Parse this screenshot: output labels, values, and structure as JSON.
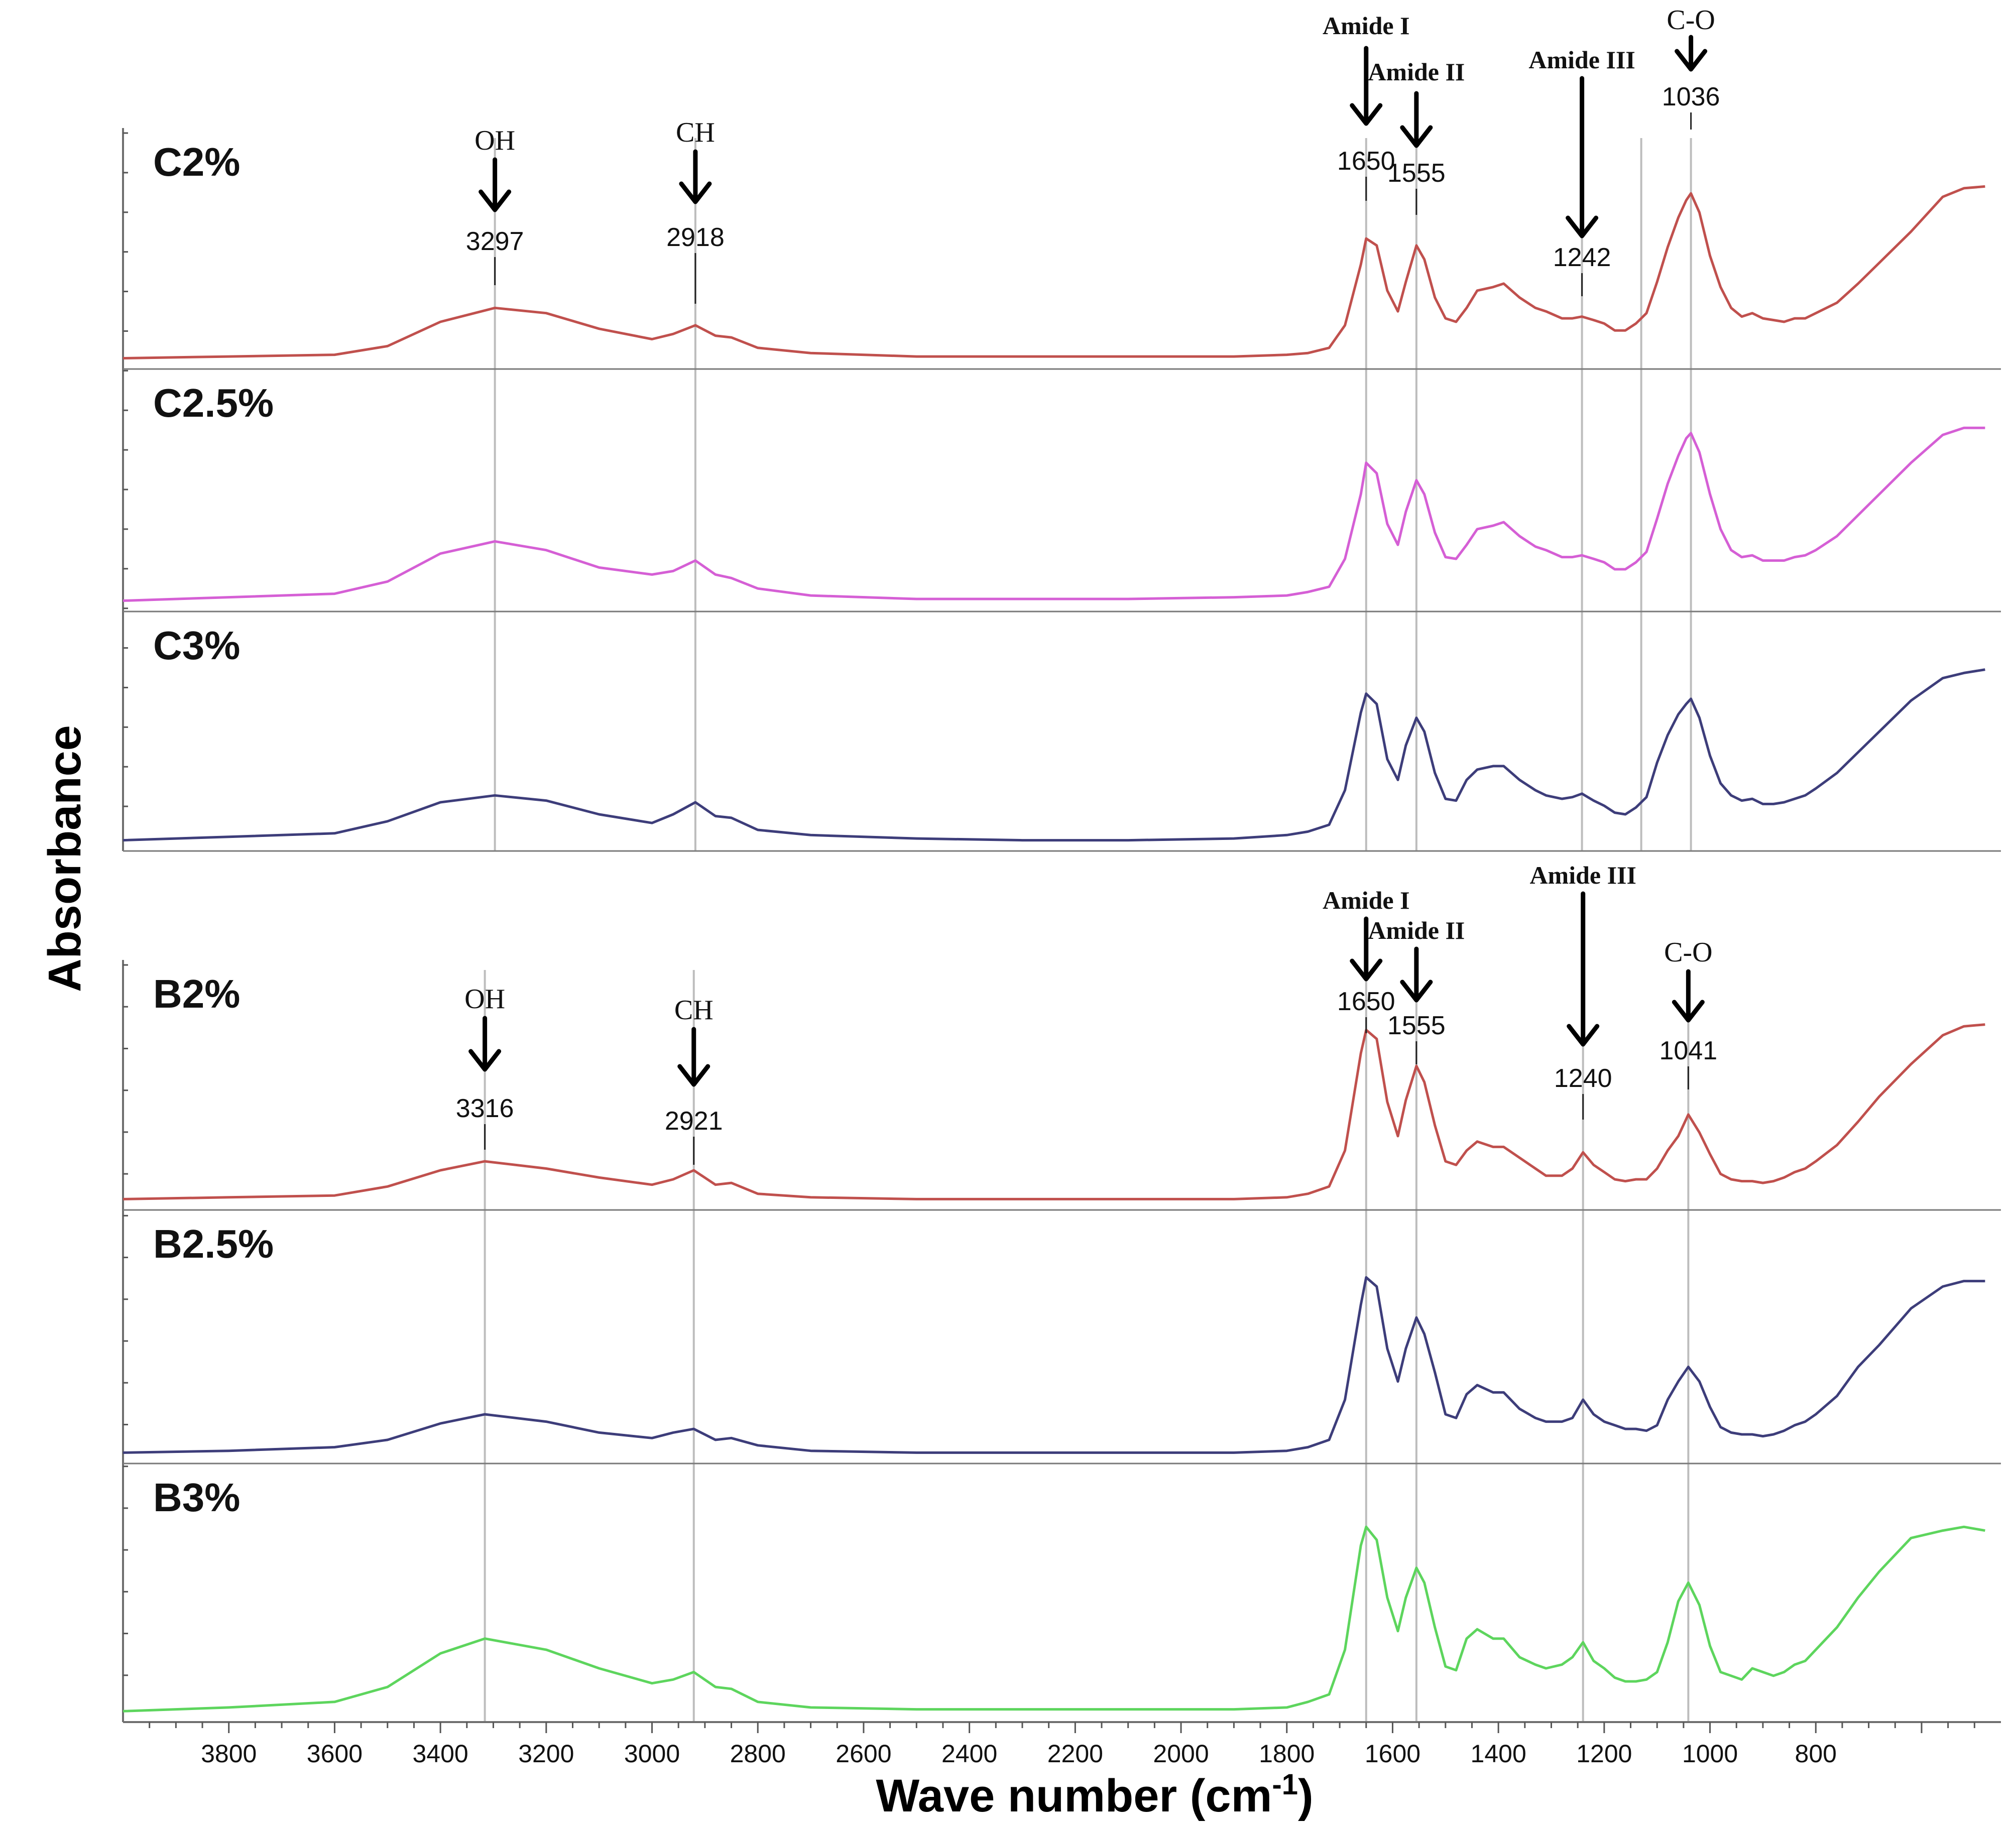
{
  "chart_data": {
    "type": "line",
    "xlabel": "Wave number (cm",
    "xlabel_sup": "-1",
    "xlabel_close": ")",
    "ylabel": "Absorbance",
    "xlim": [
      4000,
      450
    ],
    "x_ticks": [
      3800,
      3600,
      3400,
      3200,
      3000,
      2800,
      2600,
      2400,
      2200,
      2000,
      1800,
      1600,
      1400,
      1200,
      1000,
      800
    ],
    "groups": [
      {
        "name": "C",
        "guide_lines": [
          3297,
          2918,
          1650,
          1555,
          1242,
          1130,
          1036
        ],
        "annotations": [
          {
            "label": "OH",
            "value": "3297",
            "x": 3297,
            "style": "serif"
          },
          {
            "label": "CH",
            "value": "2918",
            "x": 2918,
            "style": "serif"
          },
          {
            "label": "Amide I",
            "value": "1650",
            "x": 1650,
            "style": "bold"
          },
          {
            "label": "Amide II",
            "value": "1555",
            "x": 1555,
            "style": "bold"
          },
          {
            "label": "Amide III",
            "value": "1242",
            "x": 1242,
            "style": "bold"
          },
          {
            "label": "C-O",
            "value": "1036",
            "x": 1036,
            "style": "serif"
          }
        ]
      },
      {
        "name": "B",
        "guide_lines": [
          3316,
          2921,
          1650,
          1555,
          1240,
          1041
        ],
        "annotations": [
          {
            "label": "OH",
            "value": "3316",
            "x": 3316,
            "style": "serif"
          },
          {
            "label": "CH",
            "value": "2921",
            "x": 2921,
            "style": "serif"
          },
          {
            "label": "Amide I",
            "value": "1650",
            "x": 1650,
            "style": "bold"
          },
          {
            "label": "Amide II",
            "value": "1555",
            "x": 1555,
            "style": "bold"
          },
          {
            "label": "Amide III",
            "value": "1240",
            "x": 1240,
            "style": "bold"
          },
          {
            "label": "C-O",
            "value": "1041",
            "x": 1041,
            "style": "serif"
          }
        ]
      }
    ],
    "series": [
      {
        "name": "C2%",
        "group": "C",
        "color": "#c0504d",
        "peaks": [
          [
            3297,
            0.3
          ],
          [
            2918,
            0.2
          ],
          [
            1650,
            0.7
          ],
          [
            1555,
            0.66
          ],
          [
            1242,
            0.25
          ],
          [
            1036,
            0.96
          ]
        ],
        "x": [
          4000,
          3800,
          3600,
          3500,
          3400,
          3297,
          3200,
          3100,
          3000,
          2960,
          2918,
          2880,
          2850,
          2800,
          2700,
          2500,
          2300,
          2100,
          1900,
          1800,
          1760,
          1720,
          1690,
          1660,
          1650,
          1630,
          1610,
          1590,
          1575,
          1555,
          1540,
          1520,
          1500,
          1480,
          1460,
          1440,
          1410,
          1390,
          1360,
          1330,
          1310,
          1280,
          1260,
          1242,
          1220,
          1200,
          1180,
          1160,
          1140,
          1130,
          1120,
          1100,
          1080,
          1060,
          1045,
          1036,
          1020,
          1000,
          980,
          960,
          940,
          920,
          900,
          880,
          860,
          840,
          820,
          800,
          760,
          720,
          680,
          620,
          560,
          520,
          480
        ],
        "y": [
          0.01,
          0.02,
          0.03,
          0.08,
          0.22,
          0.3,
          0.27,
          0.18,
          0.12,
          0.15,
          0.2,
          0.14,
          0.13,
          0.07,
          0.04,
          0.02,
          0.02,
          0.02,
          0.02,
          0.03,
          0.04,
          0.07,
          0.2,
          0.55,
          0.7,
          0.66,
          0.4,
          0.28,
          0.45,
          0.66,
          0.58,
          0.36,
          0.24,
          0.22,
          0.3,
          0.4,
          0.42,
          0.44,
          0.36,
          0.3,
          0.28,
          0.24,
          0.24,
          0.25,
          0.23,
          0.21,
          0.17,
          0.17,
          0.21,
          0.24,
          0.27,
          0.45,
          0.65,
          0.82,
          0.92,
          0.96,
          0.85,
          0.6,
          0.42,
          0.3,
          0.25,
          0.27,
          0.24,
          0.23,
          0.22,
          0.24,
          0.24,
          0.27,
          0.33,
          0.44,
          0.56,
          0.74,
          0.94,
          0.99,
          1.0
        ]
      },
      {
        "name": "C2.5%",
        "group": "C",
        "color": "#d55fd5",
        "peaks": [],
        "x": [
          4000,
          3800,
          3600,
          3500,
          3400,
          3297,
          3200,
          3100,
          3000,
          2960,
          2918,
          2880,
          2850,
          2800,
          2700,
          2500,
          2300,
          2100,
          1900,
          1800,
          1760,
          1720,
          1690,
          1660,
          1650,
          1630,
          1610,
          1590,
          1575,
          1555,
          1540,
          1520,
          1500,
          1480,
          1460,
          1440,
          1410,
          1390,
          1360,
          1330,
          1310,
          1280,
          1260,
          1242,
          1220,
          1200,
          1180,
          1160,
          1140,
          1130,
          1120,
          1100,
          1080,
          1060,
          1045,
          1036,
          1020,
          1000,
          980,
          960,
          940,
          920,
          900,
          880,
          860,
          840,
          820,
          800,
          760,
          720,
          680,
          620,
          560,
          520,
          480
        ],
        "y": [
          0.01,
          0.03,
          0.05,
          0.12,
          0.28,
          0.35,
          0.3,
          0.2,
          0.16,
          0.18,
          0.24,
          0.16,
          0.14,
          0.08,
          0.04,
          0.02,
          0.02,
          0.02,
          0.03,
          0.04,
          0.06,
          0.09,
          0.25,
          0.62,
          0.8,
          0.74,
          0.45,
          0.33,
          0.52,
          0.7,
          0.62,
          0.4,
          0.26,
          0.25,
          0.33,
          0.42,
          0.44,
          0.46,
          0.38,
          0.32,
          0.3,
          0.26,
          0.26,
          0.27,
          0.25,
          0.23,
          0.19,
          0.19,
          0.23,
          0.26,
          0.29,
          0.48,
          0.68,
          0.84,
          0.94,
          0.97,
          0.86,
          0.62,
          0.42,
          0.3,
          0.26,
          0.27,
          0.24,
          0.24,
          0.24,
          0.26,
          0.27,
          0.3,
          0.38,
          0.5,
          0.62,
          0.8,
          0.96,
          1.0,
          1.0
        ]
      },
      {
        "name": "C3%",
        "group": "C",
        "color": "#3d3d7a",
        "peaks": [],
        "x": [
          4000,
          3800,
          3600,
          3500,
          3400,
          3297,
          3200,
          3100,
          3000,
          2960,
          2918,
          2880,
          2850,
          2800,
          2700,
          2500,
          2300,
          2100,
          1900,
          1800,
          1760,
          1720,
          1690,
          1660,
          1650,
          1630,
          1610,
          1590,
          1575,
          1555,
          1540,
          1520,
          1500,
          1480,
          1460,
          1440,
          1410,
          1390,
          1360,
          1330,
          1310,
          1280,
          1260,
          1242,
          1220,
          1200,
          1180,
          1160,
          1140,
          1130,
          1120,
          1100,
          1080,
          1060,
          1045,
          1036,
          1020,
          1000,
          980,
          960,
          940,
          920,
          900,
          880,
          860,
          840,
          820,
          800,
          760,
          720,
          680,
          620,
          560,
          520,
          480
        ],
        "y": [
          0.01,
          0.03,
          0.05,
          0.12,
          0.23,
          0.27,
          0.24,
          0.16,
          0.11,
          0.16,
          0.23,
          0.15,
          0.14,
          0.07,
          0.04,
          0.02,
          0.01,
          0.01,
          0.02,
          0.04,
          0.06,
          0.1,
          0.3,
          0.75,
          0.86,
          0.8,
          0.48,
          0.36,
          0.56,
          0.72,
          0.64,
          0.4,
          0.25,
          0.24,
          0.36,
          0.42,
          0.44,
          0.44,
          0.36,
          0.3,
          0.27,
          0.25,
          0.26,
          0.28,
          0.24,
          0.21,
          0.17,
          0.16,
          0.2,
          0.23,
          0.26,
          0.46,
          0.62,
          0.74,
          0.8,
          0.83,
          0.72,
          0.5,
          0.34,
          0.27,
          0.24,
          0.25,
          0.22,
          0.22,
          0.23,
          0.25,
          0.27,
          0.31,
          0.4,
          0.52,
          0.64,
          0.82,
          0.95,
          0.98,
          1.0
        ]
      },
      {
        "name": "B2%",
        "group": "B",
        "color": "#c0504d",
        "peaks": [],
        "x": [
          4000,
          3800,
          3600,
          3500,
          3400,
          3316,
          3200,
          3100,
          3000,
          2960,
          2921,
          2880,
          2850,
          2800,
          2700,
          2500,
          2300,
          2100,
          1900,
          1800,
          1760,
          1720,
          1690,
          1660,
          1650,
          1630,
          1610,
          1590,
          1575,
          1555,
          1540,
          1520,
          1500,
          1480,
          1460,
          1440,
          1410,
          1390,
          1360,
          1330,
          1310,
          1280,
          1260,
          1240,
          1220,
          1200,
          1180,
          1160,
          1140,
          1120,
          1100,
          1080,
          1060,
          1041,
          1020,
          1000,
          980,
          960,
          940,
          920,
          900,
          880,
          860,
          840,
          820,
          800,
          760,
          720,
          680,
          620,
          560,
          520,
          480
        ],
        "y": [
          0.01,
          0.02,
          0.03,
          0.08,
          0.17,
          0.22,
          0.18,
          0.13,
          0.09,
          0.12,
          0.17,
          0.09,
          0.1,
          0.04,
          0.02,
          0.01,
          0.01,
          0.01,
          0.01,
          0.02,
          0.04,
          0.08,
          0.28,
          0.82,
          0.95,
          0.9,
          0.55,
          0.36,
          0.56,
          0.75,
          0.66,
          0.42,
          0.22,
          0.2,
          0.28,
          0.33,
          0.3,
          0.3,
          0.24,
          0.18,
          0.14,
          0.14,
          0.18,
          0.27,
          0.2,
          0.16,
          0.12,
          0.11,
          0.12,
          0.12,
          0.18,
          0.28,
          0.36,
          0.48,
          0.38,
          0.26,
          0.15,
          0.12,
          0.11,
          0.11,
          0.1,
          0.11,
          0.13,
          0.16,
          0.18,
          0.22,
          0.31,
          0.44,
          0.58,
          0.76,
          0.92,
          0.97,
          0.98
        ]
      },
      {
        "name": "B2.5%",
        "group": "B",
        "color": "#3d3d7a",
        "peaks": [],
        "x": [
          4000,
          3800,
          3600,
          3500,
          3400,
          3316,
          3200,
          3100,
          3000,
          2960,
          2921,
          2880,
          2850,
          2800,
          2700,
          2500,
          2300,
          2100,
          1900,
          1800,
          1760,
          1720,
          1690,
          1660,
          1650,
          1630,
          1610,
          1590,
          1575,
          1555,
          1540,
          1520,
          1500,
          1480,
          1460,
          1440,
          1410,
          1390,
          1360,
          1330,
          1310,
          1280,
          1260,
          1240,
          1220,
          1200,
          1180,
          1160,
          1140,
          1120,
          1100,
          1080,
          1060,
          1041,
          1020,
          1000,
          980,
          960,
          940,
          920,
          900,
          880,
          860,
          840,
          820,
          800,
          760,
          720,
          680,
          620,
          560,
          520,
          480
        ],
        "y": [
          0.01,
          0.02,
          0.04,
          0.08,
          0.17,
          0.22,
          0.18,
          0.12,
          0.09,
          0.12,
          0.14,
          0.08,
          0.09,
          0.05,
          0.02,
          0.01,
          0.01,
          0.01,
          0.01,
          0.02,
          0.04,
          0.08,
          0.3,
          0.82,
          0.97,
          0.92,
          0.58,
          0.4,
          0.58,
          0.75,
          0.66,
          0.45,
          0.22,
          0.2,
          0.33,
          0.38,
          0.34,
          0.34,
          0.25,
          0.2,
          0.18,
          0.18,
          0.2,
          0.3,
          0.22,
          0.18,
          0.16,
          0.14,
          0.14,
          0.13,
          0.16,
          0.3,
          0.4,
          0.48,
          0.4,
          0.26,
          0.15,
          0.12,
          0.11,
          0.11,
          0.1,
          0.11,
          0.13,
          0.16,
          0.18,
          0.22,
          0.32,
          0.48,
          0.6,
          0.8,
          0.92,
          0.95,
          0.95
        ]
      },
      {
        "name": "B3%",
        "group": "B",
        "color": "#5dd55d",
        "peaks": [],
        "x": [
          4000,
          3800,
          3600,
          3500,
          3400,
          3316,
          3200,
          3100,
          3000,
          2960,
          2921,
          2880,
          2850,
          2800,
          2700,
          2500,
          2300,
          2100,
          1900,
          1800,
          1760,
          1720,
          1690,
          1660,
          1650,
          1630,
          1610,
          1590,
          1575,
          1555,
          1540,
          1520,
          1500,
          1480,
          1460,
          1440,
          1410,
          1390,
          1360,
          1330,
          1310,
          1280,
          1260,
          1240,
          1220,
          1200,
          1180,
          1160,
          1140,
          1120,
          1100,
          1080,
          1060,
          1041,
          1020,
          1000,
          980,
          960,
          940,
          920,
          900,
          880,
          860,
          840,
          820,
          800,
          760,
          720,
          680,
          620,
          560,
          520,
          480
        ],
        "y": [
          0.01,
          0.03,
          0.06,
          0.14,
          0.32,
          0.4,
          0.34,
          0.24,
          0.16,
          0.18,
          0.22,
          0.14,
          0.13,
          0.06,
          0.03,
          0.02,
          0.02,
          0.02,
          0.02,
          0.03,
          0.06,
          0.1,
          0.34,
          0.9,
          1.0,
          0.93,
          0.62,
          0.44,
          0.62,
          0.78,
          0.7,
          0.46,
          0.25,
          0.23,
          0.4,
          0.45,
          0.4,
          0.4,
          0.3,
          0.26,
          0.24,
          0.26,
          0.3,
          0.38,
          0.28,
          0.24,
          0.19,
          0.17,
          0.17,
          0.18,
          0.22,
          0.38,
          0.6,
          0.7,
          0.58,
          0.36,
          0.22,
          0.2,
          0.18,
          0.24,
          0.22,
          0.2,
          0.22,
          0.26,
          0.28,
          0.34,
          0.46,
          0.62,
          0.76,
          0.94,
          0.98,
          1.0,
          0.98
        ]
      }
    ]
  }
}
